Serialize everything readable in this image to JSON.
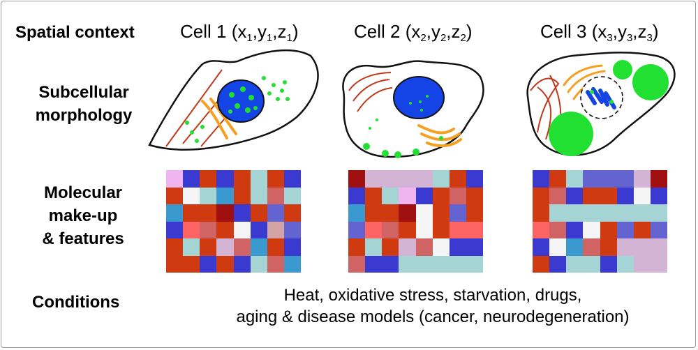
{
  "row_labels": {
    "spatial": "Spatial context",
    "subcellular": [
      "Subcellular",
      "morphology"
    ],
    "molecular": [
      "Molecular",
      "make-up",
      "& features"
    ],
    "conditions": "Conditions"
  },
  "cells": [
    {
      "name": "Cell 1",
      "coords": {
        "x": "x",
        "xs": "1",
        "y": "y",
        "ys": "1",
        "z": "z",
        "zs": "1"
      }
    },
    {
      "name": "Cell 2",
      "coords": {
        "x": "x",
        "xs": "2",
        "y": "y",
        "ys": "2",
        "z": "z",
        "zs": "2"
      }
    },
    {
      "name": "Cell 3",
      "coords": {
        "x": "x",
        "xs": "3",
        "y": "y",
        "ys": "3",
        "z": "z",
        "zs": "3"
      }
    }
  ],
  "conditions_text": [
    "Heat, oxidative stress, starvation, drugs,",
    "aging & disease models (cancer, neurodegeneration)"
  ],
  "colors": {
    "nucleus": "#1443e6",
    "granule": "#22e032",
    "actin": "#c0391b",
    "golgi": "#f5a020",
    "outline": "#111111"
  },
  "heatmaps": [
    [
      "#f0b4f0",
      "#3a3ad0",
      "#d03a10",
      "#3a3ad0",
      "#d03a10",
      "#a4d4d4",
      "#d03a10",
      "#3a3ad0",
      "#d03a10",
      "#f5f5f5",
      "#a4d4d4",
      "#3a9ad0",
      "#d03a10",
      "#a4d4d4",
      "#d06464",
      "#a4d4d4",
      "#3a9ad0",
      "#d03a10",
      "#d03a10",
      "#a01010",
      "#3a3ad0",
      "#d03a10",
      "#6464d0",
      "#d03a10",
      "#3a3ad0",
      "#ff6464",
      "#d06464",
      "#d03a10",
      "#f5f5f5",
      "#3a3ad0",
      "#d4a4a4",
      "#6464d0",
      "#d03a10",
      "#a4d4d4",
      "#d03a10",
      "#d4b4d4",
      "#d06464",
      "#3a9ad0",
      "#d03a10",
      "#3a3ad0",
      "#d03a10",
      "#d03a10",
      "#3a3ad0",
      "#d03a10",
      "#3a3ad0",
      "#a4d4d4",
      "#d06464",
      "#3a9ad0"
    ],
    [
      "#a01010",
      "#d4b4d4",
      "#d4b4d4",
      "#d4b4d4",
      "#d4b4d4",
      "#a4d4d4",
      "#d03a10",
      "#3a3ad0",
      "#3a3ad0",
      "#d03a10",
      "#a4d4d4",
      "#f0b4f0",
      "#3a3ad0",
      "#d03a10",
      "#d06464",
      "#d03a10",
      "#3a9ad0",
      "#d03a10",
      "#d03a10",
      "#a01010",
      "#f5f5f5",
      "#d03a10",
      "#6464d0",
      "#d03a10",
      "#6464d0",
      "#ff6464",
      "#d06464",
      "#d03a10",
      "#f5f5f5",
      "#d03a10",
      "#ff6464",
      "#ff6464",
      "#d03a10",
      "#a4d4d4",
      "#d03a10",
      "#d4b4d4",
      "#d06464",
      "#f5f5f5",
      "#3a3ad0",
      "#3a3ad0",
      "#d06464",
      "#3a3ad0",
      "#3a3ad0",
      "#a4d4d4",
      "#a4d4d4",
      "#a4d4d4",
      "#a4d4d4",
      "#a4d4d4"
    ],
    [
      "#3a3ad0",
      "#d03a10",
      "#a4d4d4",
      "#6464d0",
      "#6464d0",
      "#6464d0",
      "#d4b4d4",
      "#a01010",
      "#d03a10",
      "#d06464",
      "#3a3ad0",
      "#d03a10",
      "#d03a10",
      "#3a3ad0",
      "#f5f5f5",
      "#3a3ad0",
      "#d03a10",
      "#a4d4d4",
      "#a4d4d4",
      "#a4d4d4",
      "#a4d4d4",
      "#a4d4d4",
      "#a4d4d4",
      "#a4d4d4",
      "#ff6464",
      "#d06464",
      "#3a3ad0",
      "#f5f5f5",
      "#d03a10",
      "#6464d0",
      "#d03a10",
      "#6464d0",
      "#3a3ad0",
      "#f5f5f5",
      "#3a9ad0",
      "#d06464",
      "#d03a10",
      "#d4b4d4",
      "#d4b4d4",
      "#d4b4d4",
      "#d03a10",
      "#3a3ad0",
      "#a4d4d4",
      "#a4d4d4",
      "#3a3ad0",
      "#a4d4d4",
      "#d4b4d4",
      "#d4b4d4"
    ]
  ]
}
